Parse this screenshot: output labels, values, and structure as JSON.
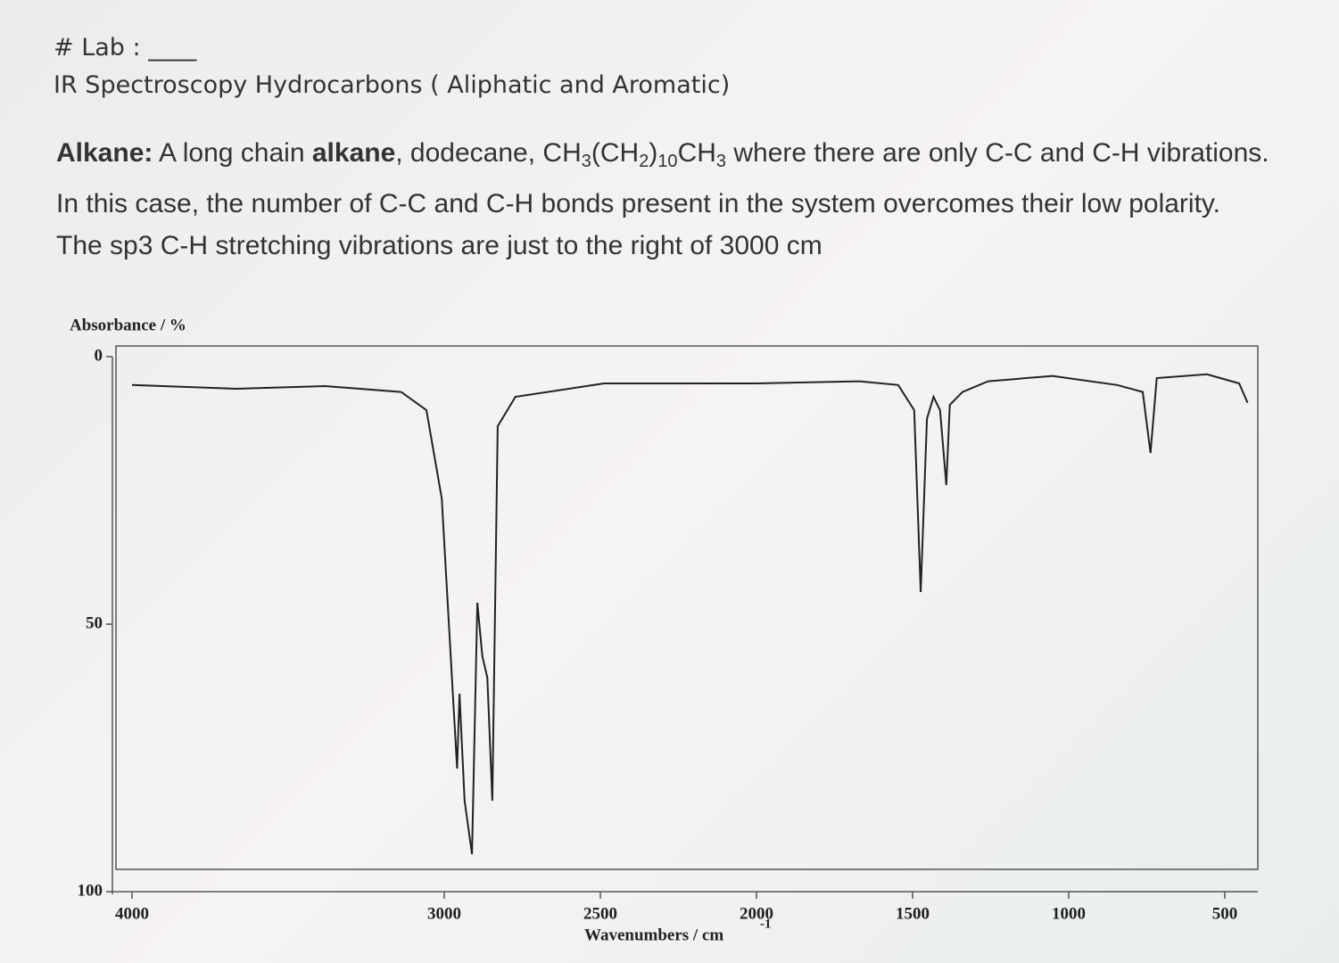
{
  "header": {
    "lab": "# Lab : ____",
    "title": "IR Spectroscopy Hydrocarbons ( Aliphatic and Aromatic)"
  },
  "paragraph": {
    "segments": [
      {
        "text": "Alkane:",
        "style": "bold"
      },
      {
        "text": " A long chain ",
        "style": "normal"
      },
      {
        "text": "alkane",
        "style": "bold"
      },
      {
        "text": ", dodecane, CH",
        "style": "normal"
      },
      {
        "text": "3",
        "style": "sub"
      },
      {
        "text": "(CH",
        "style": "normal"
      },
      {
        "text": "2",
        "style": "sub"
      },
      {
        "text": ")",
        "style": "normal"
      },
      {
        "text": "10",
        "style": "sub"
      },
      {
        "text": "CH",
        "style": "normal"
      },
      {
        "text": "3",
        "style": "sub"
      },
      {
        "text": " where there are only C-C and C-H vibrations. In this case, the number of C-C and C-H bonds present in the system overcomes their low polarity. The sp3 C-H stretching vibrations are just to the right of 3000 cm",
        "style": "normal"
      }
    ]
  },
  "chart_data": {
    "type": "line",
    "y_label": "Absorbance / %",
    "x_label": "Wavenumbers / cm",
    "x_label_sup": "-1",
    "x": [
      4000,
      3667,
      3382,
      3138,
      3057,
      3008,
      2959,
      2951,
      2935,
      2911,
      2894,
      2878,
      2862,
      2846,
      2829,
      2772,
      2488,
      2000,
      1670,
      1546,
      1495,
      1474,
      1454,
      1433,
      1412,
      1392,
      1381,
      1340,
      1258,
      1052,
      845,
      763,
      738,
      718,
      557,
      454,
      427
    ],
    "values": [
      5.3,
      6,
      5.5,
      6.6,
      10,
      26.5,
      77,
      63,
      83,
      93,
      46,
      56,
      60,
      83,
      13,
      7.5,
      5,
      5,
      4.6,
      5.3,
      10,
      44,
      11.6,
      7.5,
      10,
      24,
      9,
      6.6,
      4.6,
      3.6,
      5.3,
      6.6,
      18,
      4,
      3.3,
      5,
      8.6
    ],
    "color": "#222222",
    "xlim": [
      4000,
      400
    ],
    "xticks": [
      4000,
      3000,
      2500,
      2000,
      1500,
      1000,
      500
    ],
    "ylim": [
      0,
      100
    ],
    "yticks": [
      0,
      50,
      100
    ]
  }
}
